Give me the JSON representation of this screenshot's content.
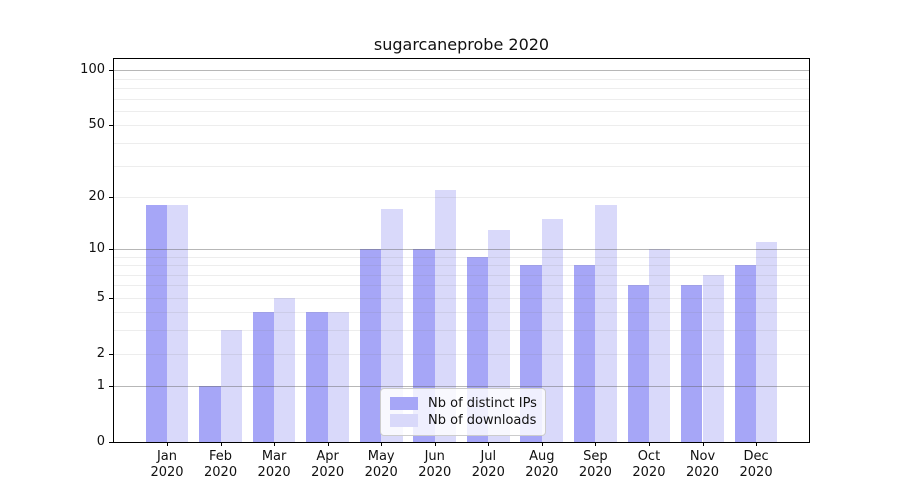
{
  "title": "sugarcaneprobe 2020",
  "chart_data": {
    "type": "bar",
    "title": "sugarcaneprobe 2020",
    "months": [
      "Jan",
      "Feb",
      "Mar",
      "Apr",
      "May",
      "Jun",
      "Jul",
      "Aug",
      "Sep",
      "Oct",
      "Nov",
      "Dec"
    ],
    "year": "2020",
    "series": [
      {
        "name": "Nb of distinct IPs",
        "color": "#a6a6f7",
        "values": [
          18,
          1,
          4,
          4,
          10,
          10,
          9,
          8,
          8,
          6,
          6,
          8
        ]
      },
      {
        "name": "Nb of downloads",
        "color": "#d9d9fa",
        "values": [
          18,
          3,
          5,
          4,
          17,
          22,
          13,
          15,
          18,
          10,
          7,
          11
        ]
      }
    ],
    "y_axis": {
      "scale": "log1p",
      "tick_values": [
        0,
        1,
        2,
        5,
        10,
        20,
        50,
        100
      ],
      "tick_labels": [
        "0",
        "1",
        "2",
        "5",
        "10",
        "20",
        "50",
        "100"
      ],
      "major_gridlines": [
        1,
        10,
        100
      ],
      "minor_gridlines": [
        2,
        3,
        4,
        5,
        6,
        7,
        8,
        9,
        20,
        30,
        40,
        50,
        60,
        70,
        80,
        90
      ],
      "range": [
        0,
        115
      ]
    },
    "xlabel": "",
    "ylabel": "",
    "grid": true,
    "legend_position": "bottom-center"
  },
  "colors": {
    "bar_distinct_ips": "#a6a6f7",
    "bar_downloads": "#d9d9fa",
    "grid_major": "#a9a9a9",
    "grid_minor": "#e5e5e5",
    "axis": "#000000",
    "legend_border": "#cccccc"
  }
}
